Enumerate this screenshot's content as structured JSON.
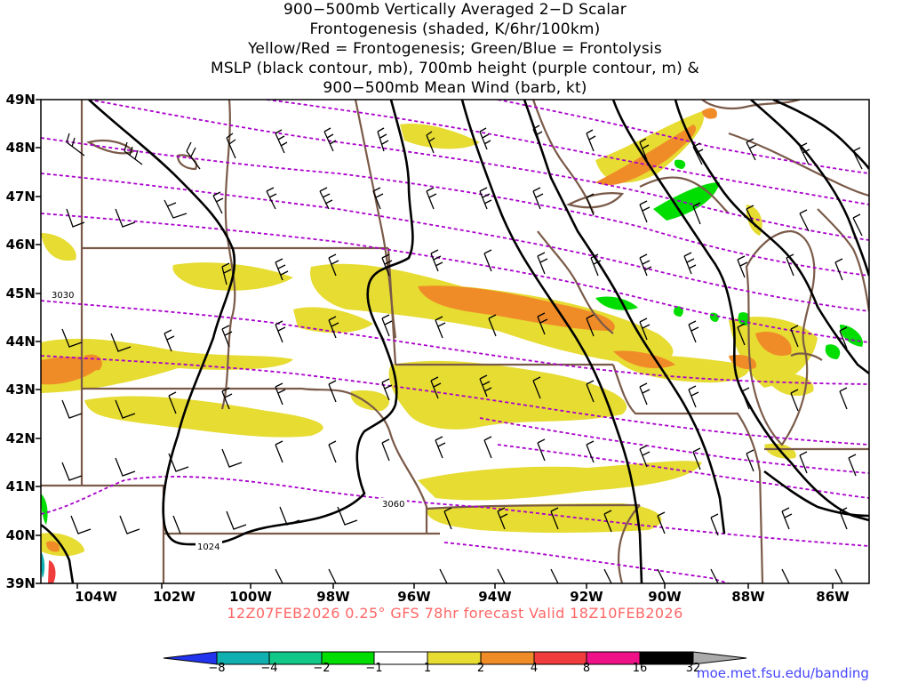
{
  "title_lines": [
    "900−500mb Vertically Averaged 2−D Scalar",
    "Frontogenesis (shaded, K/6hr/100km)",
    "Yellow/Red = Frontogenesis;  Green/Blue = Frontolysis",
    "MSLP (black contour, mb), 700mb height (purple contour, m) &",
    "900−500mb Mean Wind (barb, kt)"
  ],
  "lat_labels": [
    "49N",
    "48N",
    "47N",
    "46N",
    "45N",
    "44N",
    "43N",
    "42N",
    "41N",
    "40N",
    "39N"
  ],
  "lon_labels": [
    "104W",
    "102W",
    "100W",
    "98W",
    "96W",
    "94W",
    "92W",
    "90W",
    "88W",
    "86W"
  ],
  "valid_line": "12Z07FEB2026 0.25° GFS 78hr forecast Valid 18Z10FEB2026",
  "contour_labels": {
    "hgt_3030": "3030",
    "hgt_3060": "3060",
    "mslp_1024": "1024"
  },
  "colorbar": {
    "labels": [
      "−8",
      "−4",
      "−2",
      "−1",
      "1",
      "2",
      "4",
      "8",
      "16",
      "32"
    ],
    "colors": [
      "#2233ee",
      "#11b0b0",
      "#11c888",
      "#11cc33",
      "#00dd00",
      "#ffffff",
      "#e6dc32",
      "#f08c28",
      "#f03c3c",
      "#ee1188",
      "#000000",
      "#aaaaaa"
    ]
  },
  "colors": {
    "state_borders": "#7a5a48",
    "mslp": "#000000",
    "height": "#aa00cc",
    "frontogenesis_weak": "#e6dc32",
    "frontogenesis_strong": "#f08c28",
    "frontolysis": "#00dd00",
    "valid_line": "#ff6666",
    "site_link": "#4444ff"
  },
  "site_link": "moe.met.fsu.edu/banding"
}
